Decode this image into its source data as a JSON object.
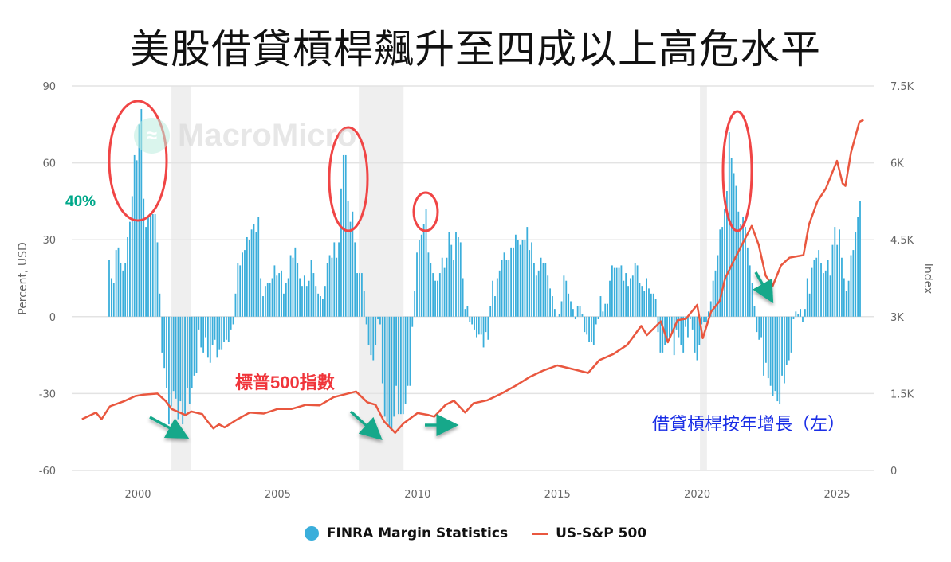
{
  "title": "美股借貸槓桿飆升至四成以上高危水平",
  "watermark": "MacroMicro",
  "annotations": {
    "threshold_label": "40%",
    "sp500_label": "標普500指數",
    "leverage_label": "借貸槓桿按年增長（左）"
  },
  "colors": {
    "bars": "#3aaedb",
    "line": "#e9573f",
    "threshold": "#00a88a",
    "circles": "#f04545",
    "arrows": "#12a88a"
  },
  "chart_data": {
    "type": "bar+line",
    "title": "美股借貸槓桿飆升至四成以上高危水平",
    "x_ticks": [
      "2000",
      "2005",
      "2010",
      "2015",
      "2020",
      "2025"
    ],
    "y_left": {
      "label": "Percent, USD",
      "ticks": [
        "90",
        "60",
        "30",
        "0",
        "-30",
        "-60"
      ],
      "range": [
        -60,
        90
      ]
    },
    "y_right": {
      "label": "Index",
      "ticks": [
        "7.5K",
        "6K",
        "4.5K",
        "3K",
        "1.5K",
        "0"
      ],
      "range": [
        0,
        7500
      ]
    },
    "threshold": 40,
    "recessions": [
      [
        2001.2,
        2001.9
      ],
      [
        2007.9,
        2009.5
      ],
      [
        2020.1,
        2020.35
      ]
    ],
    "legend": [
      "FINRA Margin Statistics",
      "US-S&P 500"
    ],
    "legend_position": "bottom",
    "series": [
      {
        "name": "FINRA Margin Statistics",
        "type": "bar",
        "frequency": "monthly",
        "start": "1999-01",
        "values": [
          22,
          15,
          13,
          26,
          27,
          21,
          18,
          21,
          31,
          37,
          47,
          63,
          61,
          75,
          81,
          46,
          35,
          39,
          40,
          40,
          40,
          29,
          9,
          -14,
          -20,
          -28,
          -42,
          -35,
          -29,
          -32,
          -40,
          -33,
          -42,
          -38,
          -28,
          -34,
          -28,
          -23,
          -22,
          -5,
          -12,
          -14,
          -8,
          -16,
          -18,
          -11,
          -9,
          -16,
          -13,
          -13,
          -10,
          -9,
          -10,
          -5,
          -3,
          9,
          21,
          20,
          25,
          26,
          31,
          30,
          34,
          36,
          33,
          39,
          15,
          8,
          12,
          13,
          13,
          15,
          20,
          16,
          17,
          18,
          9,
          13,
          15,
          24,
          23,
          27,
          21,
          15,
          12,
          16,
          12,
          14,
          22,
          17,
          12,
          9,
          8,
          7,
          12,
          21,
          24,
          23,
          29,
          23,
          29,
          50,
          63,
          63,
          45,
          37,
          41,
          29,
          17,
          17,
          17,
          10,
          -3,
          -11,
          -15,
          -17,
          -11,
          -1,
          -3,
          -26,
          -39,
          -41,
          -43,
          -44,
          -39,
          -27,
          -38,
          -38,
          -38,
          -34,
          -27,
          -27,
          -4,
          10,
          25,
          30,
          32,
          36,
          42,
          25,
          21,
          17,
          14,
          14,
          17,
          23,
          19,
          23,
          33,
          28,
          22,
          33,
          31,
          29,
          15,
          3,
          4,
          -2,
          -3,
          -5,
          -8,
          -7,
          -7,
          -12,
          -6,
          -9,
          4,
          14,
          8,
          15,
          18,
          22,
          25,
          22,
          22,
          27,
          27,
          32,
          30,
          28,
          30,
          30,
          35,
          26,
          29,
          21,
          16,
          18,
          23,
          21,
          21,
          16,
          11,
          8,
          3,
          0,
          1,
          6,
          16,
          14,
          9,
          6,
          3,
          -1,
          4,
          4,
          1,
          -6,
          -7,
          -10,
          -10,
          -11,
          -3,
          -1,
          8,
          2,
          5,
          5,
          14,
          20,
          19,
          19,
          19,
          20,
          14,
          17,
          12,
          15,
          16,
          21,
          20,
          13,
          12,
          10,
          15,
          11,
          9,
          9,
          7,
          -6,
          -14,
          -14,
          -11,
          -10,
          -8,
          -6,
          -15,
          -5,
          -8,
          -11,
          -14,
          -4,
          -8,
          -1,
          -5,
          -14,
          -17,
          -11,
          -3,
          -2,
          -2,
          2,
          6,
          14,
          18,
          24,
          34,
          35,
          42,
          49,
          72,
          62,
          56,
          51,
          41,
          36,
          39,
          35,
          27,
          20,
          13,
          4,
          -6,
          -9,
          -8,
          -23,
          -18,
          -24,
          -27,
          -31,
          -29,
          -33,
          -34,
          -23,
          -26,
          -19,
          -17,
          -14,
          -1,
          2,
          1,
          3,
          -2,
          3,
          15,
          9,
          19,
          22,
          23,
          26,
          21,
          17,
          18,
          22,
          16,
          28,
          35,
          28,
          34,
          23,
          15,
          10,
          14,
          24,
          26,
          33,
          39,
          45
        ]
      },
      {
        "name": "US-S&P 500",
        "type": "line",
        "x": [
          1998.0,
          1998.5,
          1998.7,
          1999.0,
          1999.5,
          1999.9,
          2000.2,
          2000.7,
          2001.0,
          2001.2,
          2001.7,
          2001.9,
          2002.3,
          2002.5,
          2002.7,
          2002.9,
          2003.1,
          2003.5,
          2004.0,
          2004.5,
          2005.0,
          2005.5,
          2006.0,
          2006.5,
          2007.0,
          2007.5,
          2007.8,
          2008.2,
          2008.5,
          2008.8,
          2009.2,
          2009.5,
          2010.0,
          2010.4,
          2010.6,
          2011.0,
          2011.3,
          2011.7,
          2012.0,
          2012.5,
          2013.0,
          2013.5,
          2014.0,
          2014.5,
          2015.0,
          2015.6,
          2016.1,
          2016.5,
          2017.0,
          2017.5,
          2018.0,
          2018.2,
          2018.7,
          2018.95,
          2019.3,
          2019.6,
          2020.0,
          2020.2,
          2020.5,
          2020.8,
          2021.0,
          2021.5,
          2021.95,
          2022.2,
          2022.45,
          2022.7,
          2023.0,
          2023.3,
          2023.8,
          2024.0,
          2024.3,
          2024.6,
          2025.0,
          2025.2,
          2025.3,
          2025.5,
          2025.8,
          2025.95
        ],
        "values": [
          1000,
          1130,
          1000,
          1250,
          1350,
          1450,
          1480,
          1500,
          1350,
          1200,
          1080,
          1150,
          1100,
          950,
          820,
          900,
          840,
          980,
          1130,
          1110,
          1200,
          1200,
          1280,
          1270,
          1430,
          1500,
          1540,
          1330,
          1280,
          960,
          735,
          920,
          1120,
          1080,
          1050,
          1280,
          1360,
          1130,
          1310,
          1370,
          1500,
          1650,
          1820,
          1950,
          2050,
          1970,
          1900,
          2150,
          2270,
          2450,
          2820,
          2640,
          2910,
          2500,
          2930,
          2960,
          3230,
          2580,
          3100,
          3300,
          3750,
          4300,
          4770,
          4400,
          3800,
          3600,
          4000,
          4150,
          4200,
          4800,
          5250,
          5500,
          6040,
          5600,
          5550,
          6200,
          6800,
          6840
        ]
      }
    ]
  }
}
